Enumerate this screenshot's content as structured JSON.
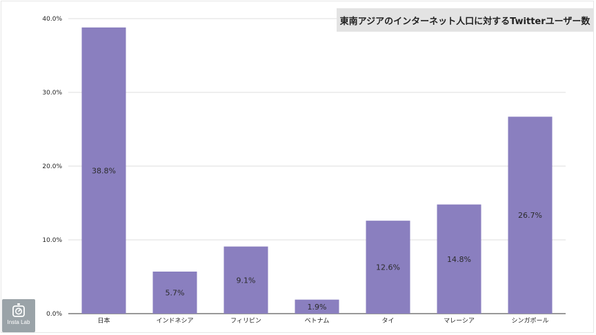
{
  "chart_data": {
    "type": "bar",
    "title": "東南アジアのインターネット人口に対するTwitterユーザー数",
    "categories": [
      "日本",
      "インドネシア",
      "フィリピン",
      "ベトナム",
      "タイ",
      "マレーシア",
      "シンガポール"
    ],
    "values": [
      38.8,
      5.7,
      9.1,
      1.9,
      12.6,
      14.8,
      26.7
    ],
    "value_labels": [
      "38.8%",
      "5.7%",
      "9.1%",
      "1.9%",
      "12.6%",
      "14.8%",
      "26.7%"
    ],
    "ylim": [
      0,
      40
    ],
    "yticks": [
      0,
      10,
      20,
      30,
      40
    ],
    "ytick_labels": [
      "0.0%",
      "10.0%",
      "20.0%",
      "30.0%",
      "40.0%"
    ],
    "grid": true,
    "xlabel": "",
    "ylabel": "",
    "bar_color": "#8a7fbf"
  },
  "logo": {
    "text": "Insta Lab",
    "icon": "stopwatch-icon"
  }
}
